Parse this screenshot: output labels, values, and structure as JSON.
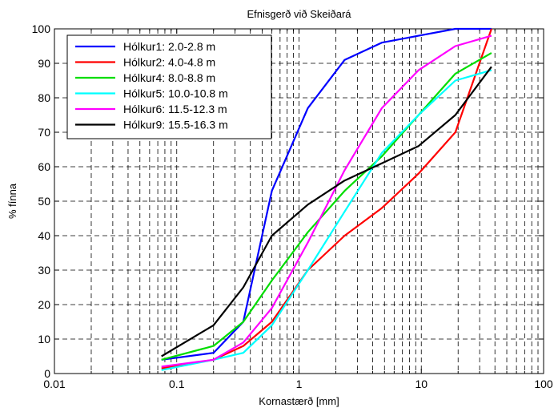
{
  "chart_data": {
    "type": "line",
    "title": "Efnisgerð við Skeiðará",
    "xlabel": "Kornastærð [mm]",
    "ylabel": "% fínna",
    "x_scale": "log",
    "xlim": [
      0.01,
      100
    ],
    "ylim": [
      0,
      100
    ],
    "x_ticks": [
      "0.01",
      "0.1",
      "1",
      "10",
      "100"
    ],
    "y_ticks": [
      "0",
      "10",
      "20",
      "30",
      "40",
      "50",
      "60",
      "70",
      "80",
      "90",
      "100"
    ],
    "grid": true,
    "legend_position": "top-left",
    "series": [
      {
        "name": "Hólkur1: 2.0-2.8 m",
        "color": "#0000ff",
        "x": [
          0.075,
          0.2,
          0.35,
          0.6,
          1.18,
          2.36,
          4.75,
          9.5,
          19,
          37.5
        ],
        "y": [
          4,
          6,
          15,
          53,
          77,
          91,
          96,
          98,
          100,
          100
        ]
      },
      {
        "name": "Hólkur2: 4.0-4.8 m",
        "color": "#ff0000",
        "x": [
          0.075,
          0.2,
          0.35,
          0.6,
          1.18,
          2.36,
          4.75,
          9.5,
          19,
          37.5
        ],
        "y": [
          1.5,
          4,
          8,
          15,
          30,
          40,
          48,
          58,
          70,
          100
        ]
      },
      {
        "name": "Hólkur4: 8.0-8.8 m",
        "color": "#00dd00",
        "x": [
          0.075,
          0.2,
          0.35,
          0.6,
          1.18,
          2.36,
          4.75,
          9.5,
          19,
          37.5
        ],
        "y": [
          4,
          8,
          15,
          27,
          41,
          53,
          63,
          75,
          87,
          93
        ]
      },
      {
        "name": "Hólkur5: 10.0-10.8 m",
        "color": "#00ffff",
        "x": [
          0.075,
          0.2,
          0.35,
          0.6,
          1.18,
          2.36,
          4.75,
          9.5,
          19,
          37.5
        ],
        "y": [
          1,
          4,
          6,
          14,
          30,
          47,
          64,
          75,
          85,
          88
        ]
      },
      {
        "name": "Hólkur6: 11.5-12.3 m",
        "color": "#ff00ff",
        "x": [
          0.075,
          0.2,
          0.35,
          0.6,
          1.18,
          2.36,
          4.75,
          9.5,
          19,
          37.5
        ],
        "y": [
          2,
          4,
          9,
          19,
          38,
          59,
          77,
          88,
          95,
          98
        ]
      },
      {
        "name": "Hólkur9: 15.5-16.3 m",
        "color": "#000000",
        "x": [
          0.075,
          0.2,
          0.35,
          0.6,
          1.18,
          2.36,
          4.75,
          9.5,
          19,
          37.5
        ],
        "y": [
          5,
          14,
          25,
          40,
          49,
          56,
          61,
          66,
          75,
          89
        ]
      }
    ]
  }
}
